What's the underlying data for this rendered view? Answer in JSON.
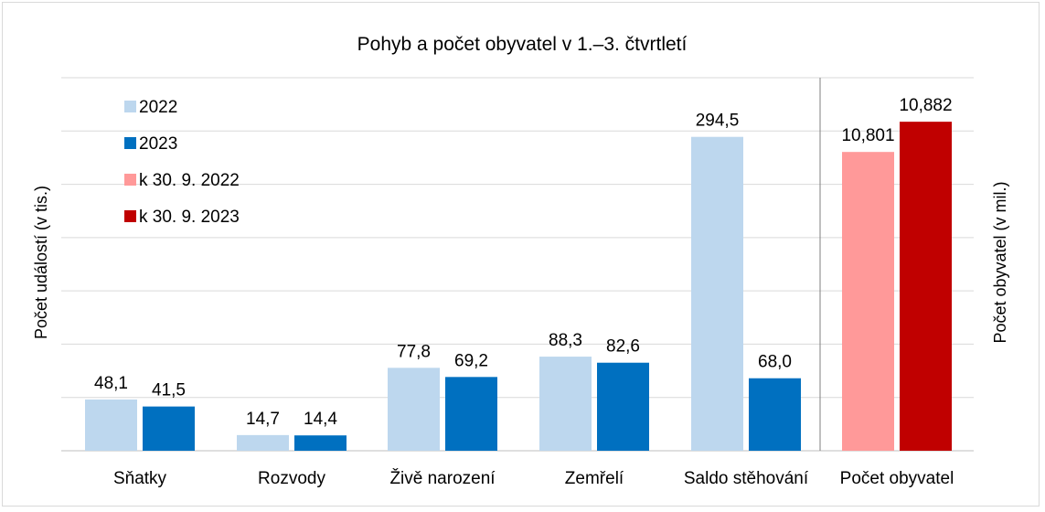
{
  "chart_data": {
    "type": "bar",
    "title": "Pohyb a počet obyvatel v 1.–3. čtvrtletí",
    "ylabel_left": "Počet událostí  (v tis.)",
    "ylabel_right": "Počet obyvatel  (v mil.)",
    "grid": true,
    "legend_position": "top-left",
    "ylim_left": [
      0,
      350
    ],
    "ylim_right": [
      10.0,
      11.0
    ],
    "categories": [
      "Sňatky",
      "Rozvody",
      "Živě narození",
      "Zemřelí",
      "Saldo stěhování",
      "Počet obyvatel"
    ],
    "series": [
      {
        "name": "2022",
        "axis": "left",
        "color": "#bdd7ee",
        "values": [
          48.1,
          14.7,
          77.8,
          88.3,
          294.5,
          null
        ],
        "labels": [
          "48,1",
          "14,7",
          "77,8",
          "88,3",
          "294,5",
          ""
        ]
      },
      {
        "name": "2023",
        "axis": "left",
        "color": "#0070c0",
        "values": [
          41.5,
          14.4,
          69.2,
          82.6,
          68.0,
          null
        ],
        "labels": [
          "41,5",
          "14,4",
          "69,2",
          "82,6",
          "68,0",
          ""
        ]
      },
      {
        "name": "k 30. 9. 2022",
        "axis": "right",
        "color": "#ff9999",
        "values": [
          null,
          null,
          null,
          null,
          null,
          10.801
        ],
        "labels": [
          "",
          "",
          "",
          "",
          "",
          "10,801"
        ]
      },
      {
        "name": "k 30. 9. 2023",
        "axis": "right",
        "color": "#c00000",
        "values": [
          null,
          null,
          null,
          null,
          null,
          10.882
        ],
        "labels": [
          "",
          "",
          "",
          "",
          "",
          "10,882"
        ]
      }
    ]
  }
}
